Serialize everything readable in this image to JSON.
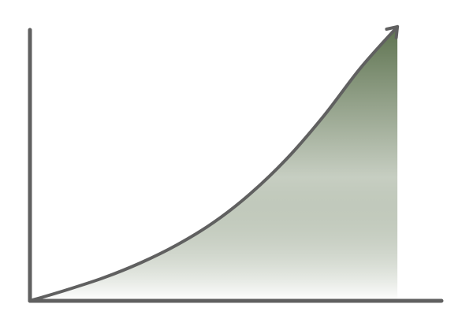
{
  "chart_data": {
    "type": "area",
    "title": "",
    "xlabel": "",
    "ylabel": "",
    "grid": false,
    "legend": "none",
    "x_arrow": false,
    "y_arrow": false,
    "curve_arrowhead": true,
    "x": [
      0,
      10,
      20,
      30,
      40,
      50,
      60,
      70,
      80,
      90,
      100
    ],
    "y": [
      0,
      4.0,
      8.4,
      13.8,
      20.4,
      28.6,
      39.1,
      52.0,
      67.5,
      85.0,
      100
    ],
    "xlim": [
      0,
      112
    ],
    "ylim": [
      0,
      104
    ],
    "colors": {
      "axis": "#606060",
      "curve": "#606060",
      "fill_top": "#5e7350",
      "fill_bottom": "#ffffff"
    }
  }
}
